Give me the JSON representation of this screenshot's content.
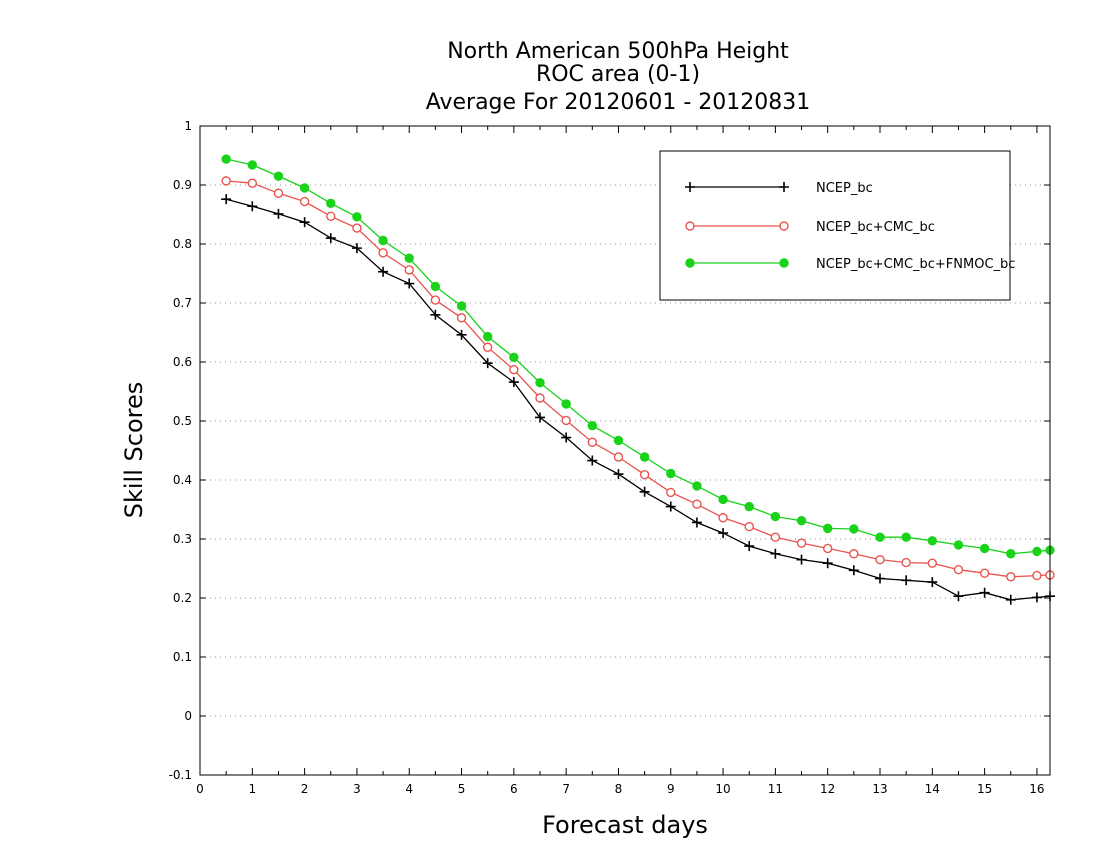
{
  "chart_data": {
    "type": "line",
    "title_lines": [
      "North American 500hPa Height",
      "ROC area (0-1)",
      "Average For 20120601 - 20120831"
    ],
    "xlabel": "Forecast days",
    "ylabel": "Skill Scores",
    "xlim": [
      0,
      16.25
    ],
    "ylim": [
      -0.1,
      1
    ],
    "x_ticks": [
      0,
      1,
      2,
      3,
      4,
      5,
      6,
      7,
      8,
      9,
      10,
      11,
      12,
      13,
      14,
      15,
      16
    ],
    "x_tick_labels": [
      "0",
      "1",
      "2",
      "3",
      "4",
      "5",
      "6",
      "7",
      "8",
      "9",
      "10",
      "11",
      "12",
      "13",
      "14",
      "15",
      "16"
    ],
    "y_ticks": [
      -0.1,
      0,
      0.1,
      0.2,
      0.3,
      0.4,
      0.5,
      0.6,
      0.7,
      0.8,
      0.9,
      1
    ],
    "y_tick_labels": [
      "-0.1",
      "0",
      "0.1",
      "0.2",
      "0.3",
      "0.4",
      "0.5",
      "0.6",
      "0.7",
      "0.8",
      "0.9",
      "1"
    ],
    "grid": "horizontal dotted",
    "legend_position": "top-right",
    "x": [
      0.5,
      1,
      1.5,
      2,
      2.5,
      3,
      3.5,
      4,
      4.5,
      5,
      5.5,
      6,
      6.5,
      7,
      7.5,
      8,
      8.5,
      9,
      9.5,
      10,
      10.5,
      11,
      11.5,
      12,
      12.5,
      13,
      13.5,
      14,
      14.5,
      15,
      15.5,
      16,
      16.25
    ],
    "series": [
      {
        "name": "NCEP_bc",
        "color": "#000000",
        "marker": "plus",
        "values": [
          0.876,
          0.864,
          0.851,
          0.837,
          0.81,
          0.793,
          0.753,
          0.733,
          0.68,
          0.646,
          0.598,
          0.566,
          0.506,
          0.472,
          0.433,
          0.41,
          0.38,
          0.355,
          0.328,
          0.31,
          0.288,
          0.275,
          0.265,
          0.259,
          0.247,
          0.233,
          0.23,
          0.227,
          0.203,
          0.209,
          0.197,
          0.201,
          0.203
        ]
      },
      {
        "name": "NCEP_bc+CMC_bc",
        "color": "#e8554e",
        "marker": "open-circle",
        "values": [
          0.907,
          0.903,
          0.886,
          0.872,
          0.847,
          0.827,
          0.785,
          0.756,
          0.705,
          0.675,
          0.625,
          0.587,
          0.539,
          0.501,
          0.464,
          0.439,
          0.409,
          0.379,
          0.359,
          0.336,
          0.321,
          0.303,
          0.293,
          0.284,
          0.275,
          0.265,
          0.26,
          0.259,
          0.248,
          0.242,
          0.236,
          0.238,
          0.239
        ]
      },
      {
        "name": "NCEP_bc+CMC_bc+FNMOC_bc",
        "color": "#19d219",
        "marker": "filled-circle",
        "values": [
          0.944,
          0.934,
          0.915,
          0.895,
          0.869,
          0.846,
          0.806,
          0.776,
          0.728,
          0.695,
          0.643,
          0.608,
          0.565,
          0.529,
          0.492,
          0.467,
          0.439,
          0.411,
          0.39,
          0.367,
          0.355,
          0.338,
          0.331,
          0.318,
          0.317,
          0.303,
          0.303,
          0.297,
          0.29,
          0.284,
          0.275,
          0.279,
          0.281
        ]
      }
    ]
  }
}
